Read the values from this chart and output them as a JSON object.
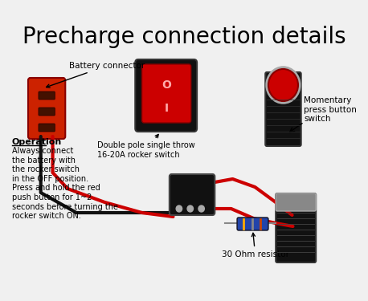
{
  "title": "Precharge connection details",
  "title_fontsize": 20,
  "bg_color": "#f0f0f0",
  "labels": {
    "battery": "Battery connector",
    "rocker": "Double pole single throw\n16-20A rocker switch",
    "momentary_top": "Momentary\npress button\nswitch",
    "resistor": "30 Ohm resistor",
    "operation_title": "Operation",
    "operation_body": "Always connect\nthe battery with\nthe rocker switch\nin the OFF position.\nPress and hold the red\npush button for 1~2\nseconds before turning the\nrocker switch ON."
  },
  "wire_red_color": "#cc0000",
  "wire_black_color": "#111111",
  "component_colors": {
    "battery_body": "#cc2200",
    "rocker_body": "#111111",
    "rocker_face": "#cc0000",
    "push_button_body": "#111111",
    "push_button_face": "#cc0000",
    "resistor_body": "#2244aa",
    "switch_bottom_body": "#111111"
  }
}
